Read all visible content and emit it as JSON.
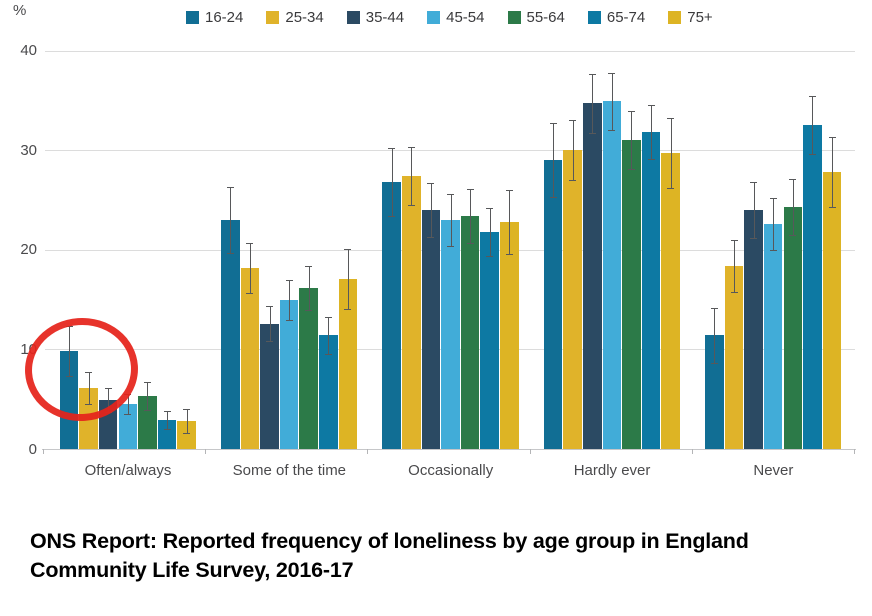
{
  "chart_data": {
    "type": "bar",
    "title": "",
    "ylabel": "%",
    "xlabel": "",
    "categories": [
      "Often/always",
      "Some of the time",
      "Occasionally",
      "Hardly ever",
      "Never"
    ],
    "series": [
      {
        "name": "16-24",
        "color": "#116e94",
        "values": [
          9.8,
          23.0,
          26.8,
          29.0,
          11.4
        ],
        "errors": [
          2.5,
          3.3,
          3.4,
          3.7,
          2.8
        ]
      },
      {
        "name": "25-34",
        "color": "#e0b32a",
        "values": [
          6.1,
          18.2,
          27.4,
          30.0,
          18.4
        ],
        "errors": [
          1.6,
          2.5,
          2.9,
          3.0,
          2.6
        ]
      },
      {
        "name": "35-44",
        "color": "#2b4a63",
        "values": [
          4.9,
          12.6,
          24.0,
          34.7,
          24.0
        ],
        "errors": [
          1.2,
          1.8,
          2.7,
          3.0,
          2.8
        ]
      },
      {
        "name": "45-54",
        "color": "#41acd8",
        "values": [
          4.5,
          15.0,
          23.0,
          34.9,
          22.6
        ],
        "errors": [
          1.0,
          2.0,
          2.6,
          2.9,
          2.6
        ]
      },
      {
        "name": "55-64",
        "color": "#2c7a48",
        "values": [
          5.3,
          16.2,
          23.4,
          31.0,
          24.3
        ],
        "errors": [
          1.4,
          2.2,
          2.7,
          2.9,
          2.8
        ]
      },
      {
        "name": "65-74",
        "color": "#0d79a3",
        "values": [
          2.9,
          11.4,
          21.8,
          31.8,
          32.5
        ],
        "errors": [
          0.9,
          1.9,
          2.4,
          2.7,
          2.9
        ]
      },
      {
        "name": "75+",
        "color": "#ddb424",
        "values": [
          2.8,
          17.1,
          22.8,
          29.7,
          27.8
        ],
        "errors": [
          1.2,
          3.0,
          3.2,
          3.5,
          3.5
        ]
      }
    ],
    "yticks": [
      0,
      10,
      20,
      30,
      40
    ],
    "ylim": [
      0,
      40
    ],
    "grid": true,
    "error_bars": true,
    "legend_position": "top",
    "annotation": {
      "shape": "ellipse",
      "color": "#e5231b",
      "target": "16-24 and 25-34 bars of Often/always"
    }
  },
  "caption": {
    "line1": "ONS Report: Reported frequency of loneliness by age group in England",
    "line2": "Community Life Survey, 2016-17"
  }
}
